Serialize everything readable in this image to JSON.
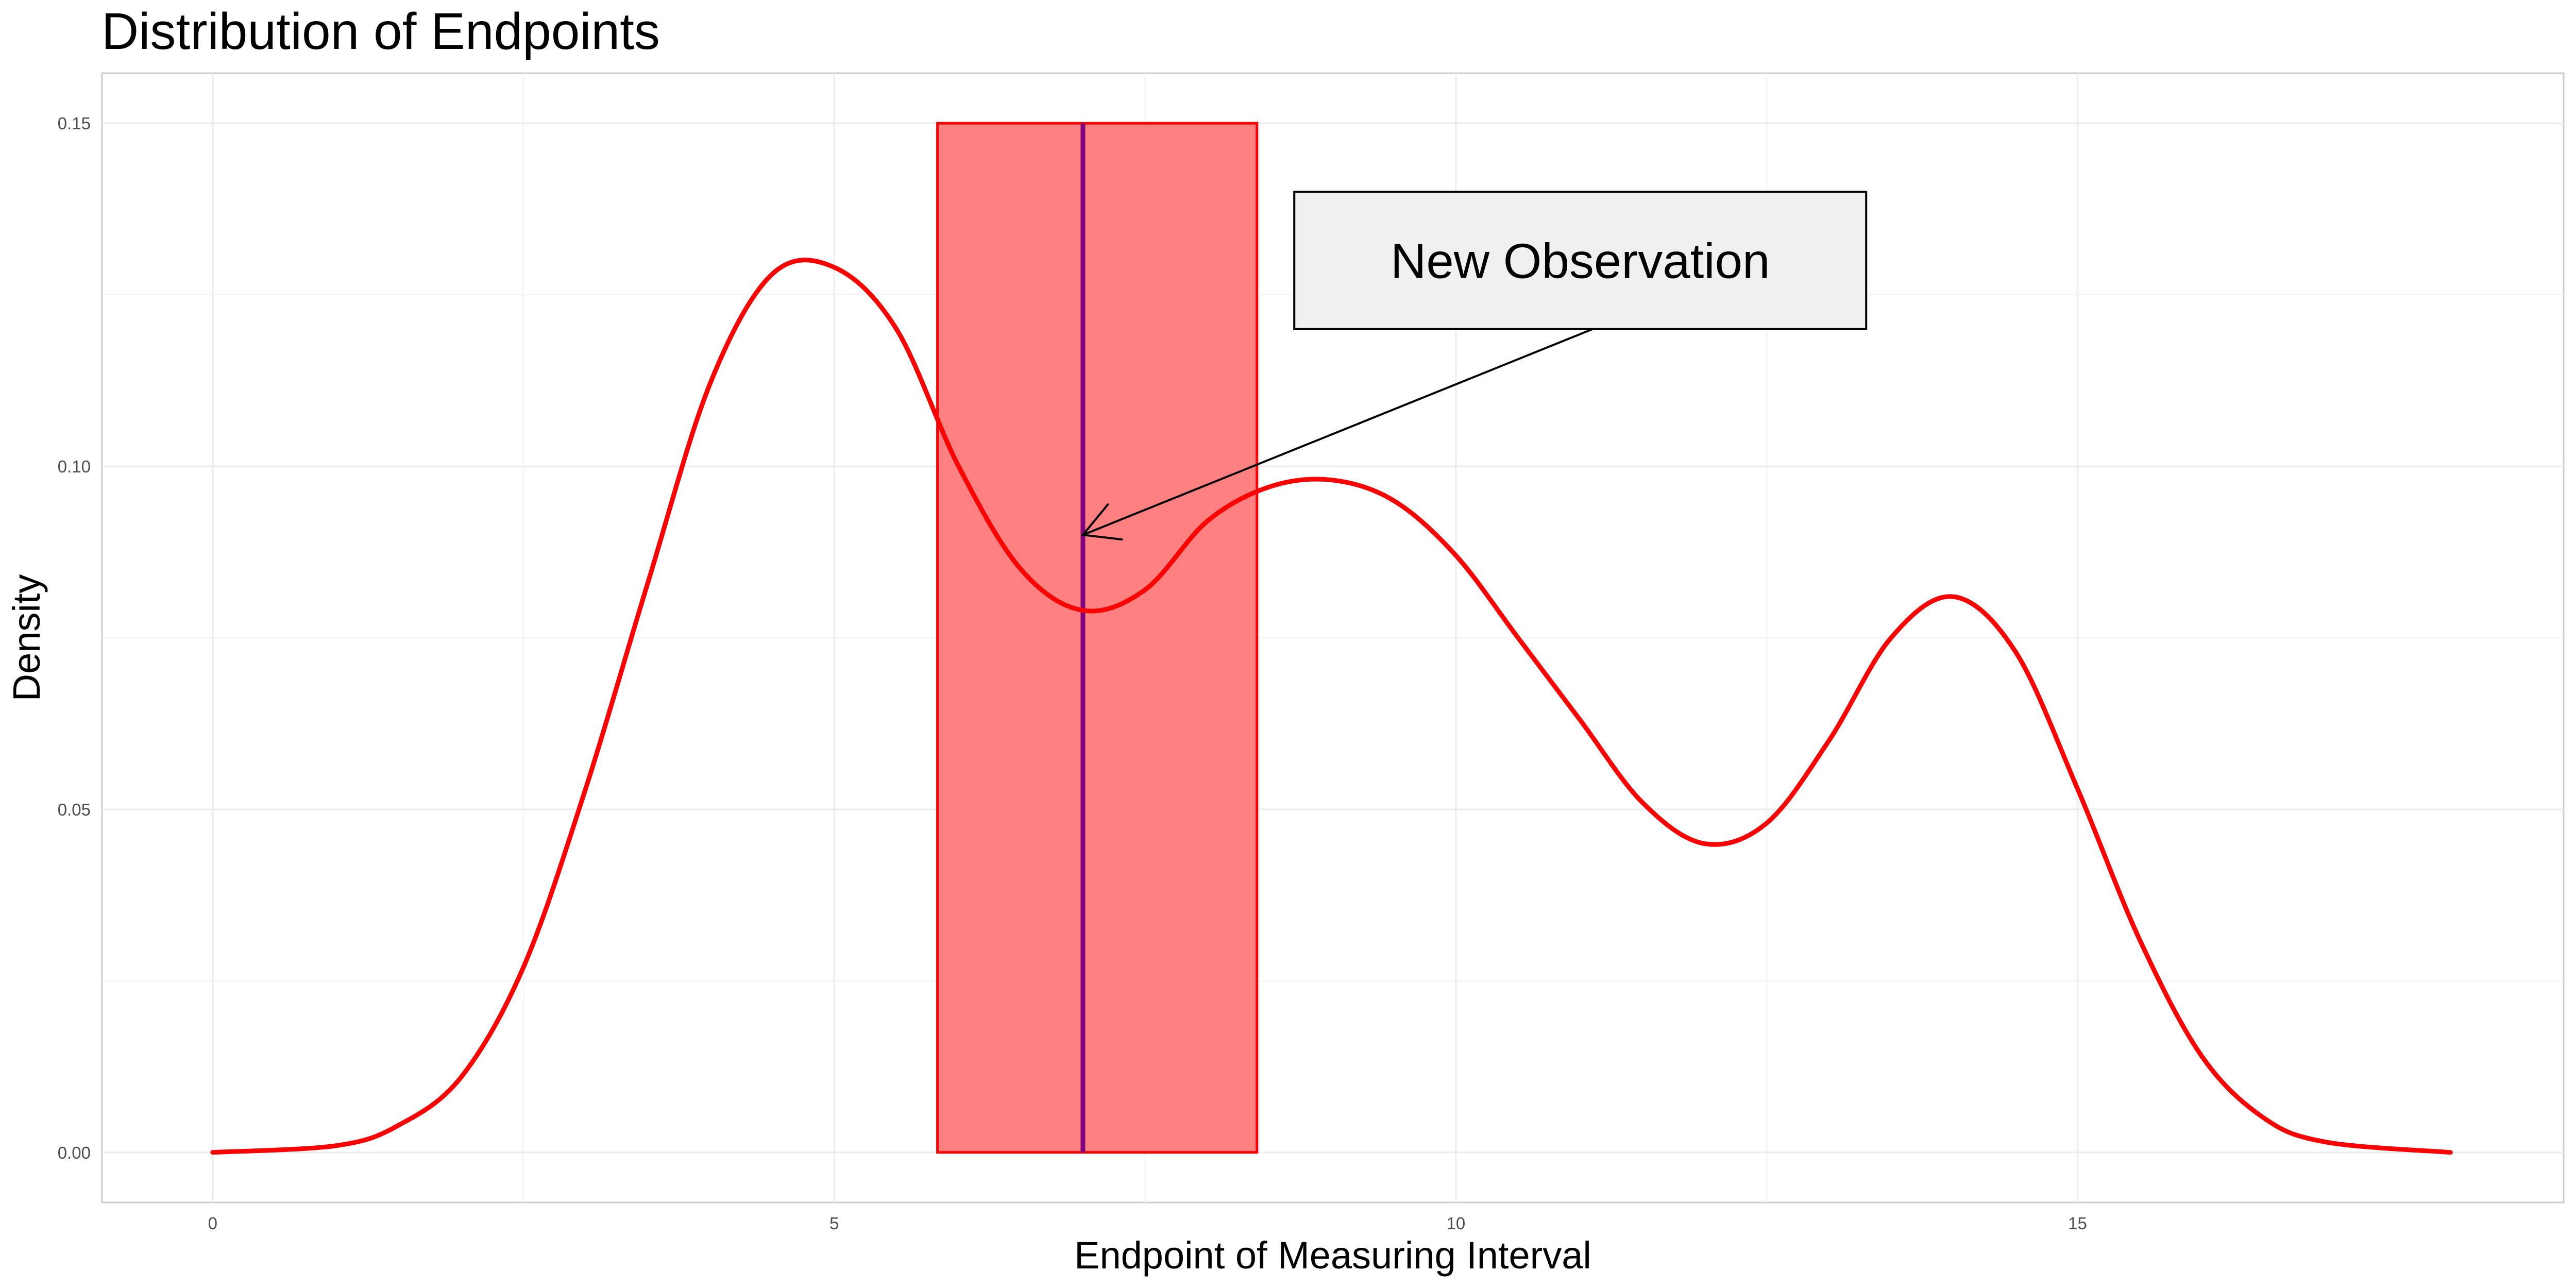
{
  "chart_data": {
    "type": "line",
    "title": "Distribution of Endpoints",
    "xlabel": "Endpoint of Measuring Interval",
    "ylabel": "Density",
    "xlim": [
      -0.89,
      18.91
    ],
    "ylim": [
      -0.0073,
      0.1573
    ],
    "x_ticks": [
      0,
      5,
      10,
      15
    ],
    "x_tick_labels": [
      "0",
      "5",
      "10",
      "15"
    ],
    "y_ticks": [
      0.0,
      0.05,
      0.1,
      0.15
    ],
    "y_tick_labels": [
      "0.00",
      "0.05",
      "0.10",
      "0.15"
    ],
    "grid": true,
    "density_curve": {
      "color": "#ff0000",
      "x": [
        0,
        1,
        1.5,
        2,
        2.5,
        3,
        3.5,
        4,
        4.5,
        5,
        5.5,
        6,
        6.5,
        7,
        7.5,
        8,
        8.5,
        9,
        9.5,
        10,
        10.5,
        11,
        11.5,
        12,
        12.5,
        13,
        13.5,
        14,
        14.5,
        15,
        15.5,
        16,
        16.5,
        17,
        18
      ],
      "y": [
        0.0,
        0.001,
        0.004,
        0.011,
        0.027,
        0.053,
        0.083,
        0.112,
        0.128,
        0.129,
        0.12,
        0.1,
        0.085,
        0.079,
        0.082,
        0.092,
        0.097,
        0.098,
        0.095,
        0.087,
        0.075,
        0.063,
        0.051,
        0.045,
        0.048,
        0.06,
        0.075,
        0.081,
        0.073,
        0.053,
        0.031,
        0.014,
        0.005,
        0.0015,
        0.0
      ]
    },
    "interval_rect": {
      "x_start": 5.83,
      "x_end": 8.4,
      "y_bottom": 0.0,
      "y_top": 0.15,
      "fill": "#ff8080",
      "stroke": "#ff0000"
    },
    "observation_line": {
      "x": 7.0,
      "color": "#800080"
    },
    "annotation": {
      "text": "New Observation",
      "box": {
        "x_start": 8.7,
        "x_end": 13.3,
        "y_bottom": 0.12,
        "y_top": 0.14,
        "fill": "#f0f0f0"
      },
      "arrow_from": [
        11.1,
        0.12
      ],
      "arrow_to": [
        7.0,
        0.09
      ]
    }
  }
}
